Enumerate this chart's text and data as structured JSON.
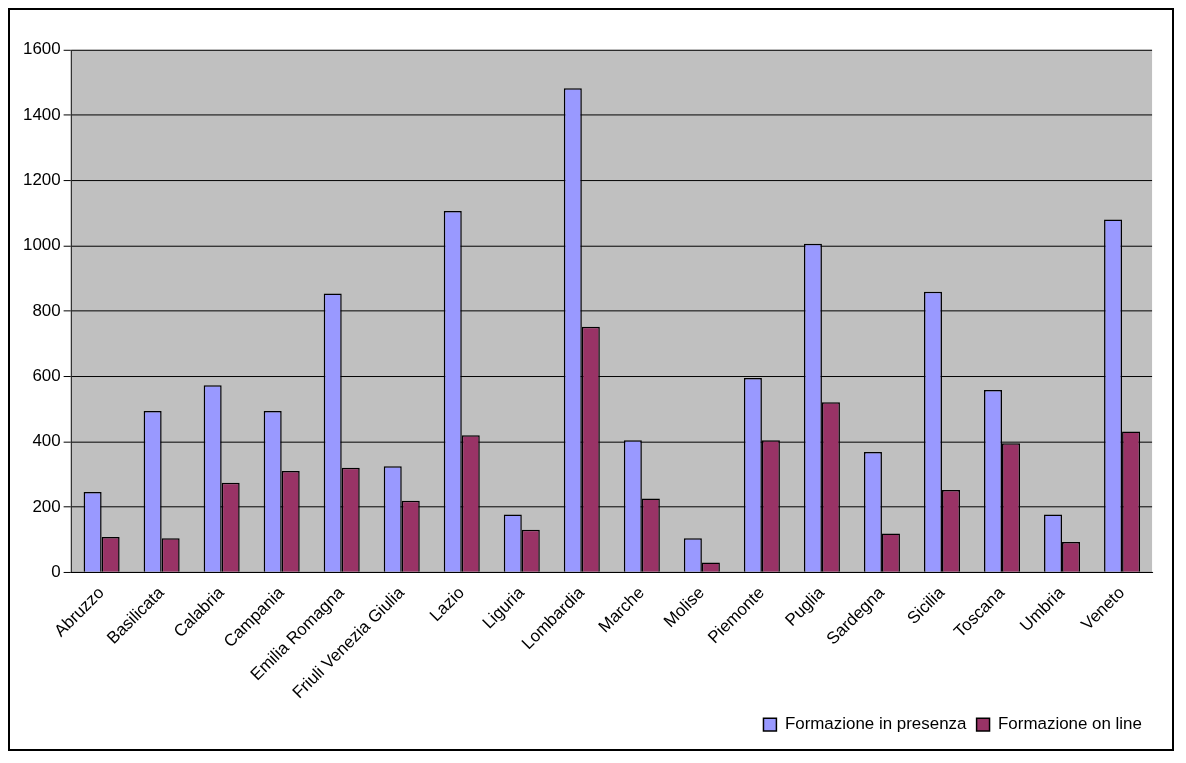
{
  "chart_data": {
    "type": "bar",
    "categories": [
      "Abruzzo",
      "Basilicata",
      "Calabria",
      "Campania",
      "Emilia Romagna",
      "Friuli Venezia Giulia",
      "Lazio",
      "Liguria",
      "Lombardia",
      "Marche",
      "Molise",
      "Piemonte",
      "Puglia",
      "Sardegna",
      "Sicilia",
      "Toscana",
      "Umbria",
      "Veneto"
    ],
    "series": [
      {
        "name": "Formazione in presenza",
        "color": "#9999ff",
        "values": [
          246,
          494,
          573,
          494,
          854,
          325,
          1106,
          177,
          1482,
          404,
          104,
          595,
          1006,
          368,
          859,
          558,
          177,
          1080
        ]
      },
      {
        "name": "Formazione on line",
        "color": "#993366",
        "values": [
          108,
          104,
          274,
          310,
          320,
          219,
          420,
          130,
          752,
          226,
          30,
          404,
          521,
          119,
          252,
          395,
          93,
          431
        ]
      }
    ],
    "ylim": [
      0,
      1600
    ],
    "yticks": [
      0,
      200,
      400,
      600,
      800,
      1000,
      1200,
      1400,
      1600
    ],
    "grid": "y",
    "legend": "bottom right"
  }
}
